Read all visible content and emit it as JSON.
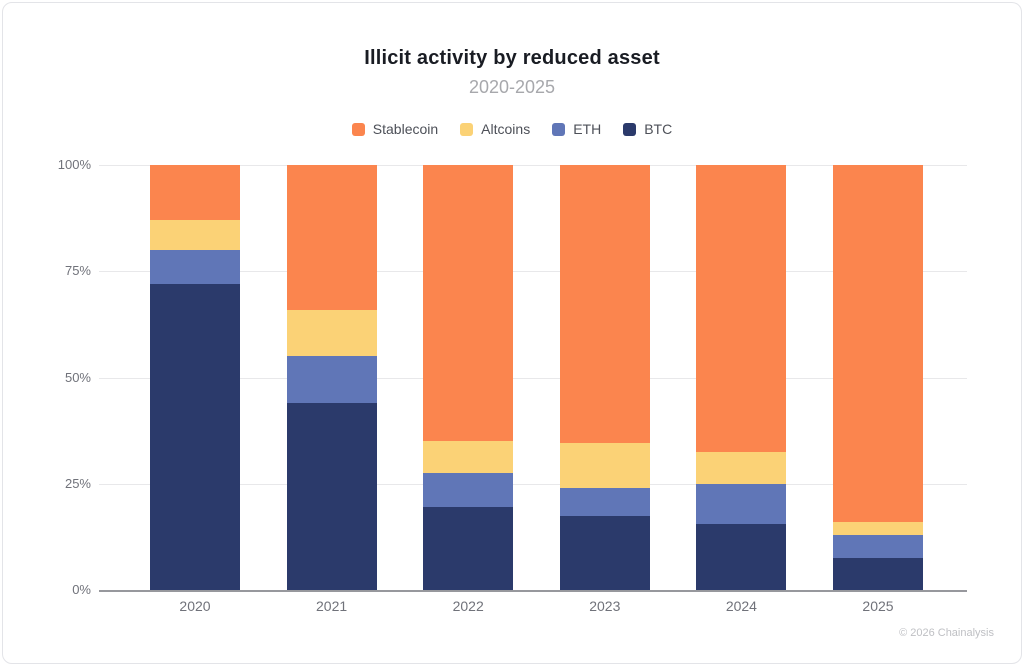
{
  "chart_data": {
    "type": "bar",
    "stacked": true,
    "title": "Illicit activity by reduced asset",
    "subtitle": "2020-2025",
    "categories": [
      "2020",
      "2021",
      "2022",
      "2023",
      "2024",
      "2025"
    ],
    "series": [
      {
        "name": "Stablecoin",
        "color": "#FB854E",
        "values": [
          13,
          34,
          65,
          65.5,
          67.5,
          84
        ]
      },
      {
        "name": "Altcoins",
        "color": "#FBD276",
        "values": [
          7,
          11,
          7.5,
          10.5,
          7.5,
          3
        ]
      },
      {
        "name": "ETH",
        "color": "#6076B7",
        "values": [
          8,
          11,
          8,
          6.5,
          9.5,
          5.5
        ]
      },
      {
        "name": "BTC",
        "color": "#2B3A6B",
        "values": [
          72,
          44,
          19.5,
          17.5,
          15.5,
          7.5
        ]
      }
    ],
    "xlabel": "",
    "ylabel": "",
    "ylim": [
      0,
      100
    ],
    "y_ticks": [
      {
        "label": "0%",
        "value": 0
      },
      {
        "label": "25%",
        "value": 25
      },
      {
        "label": "50%",
        "value": 50
      },
      {
        "label": "75%",
        "value": 75
      },
      {
        "label": "100%",
        "value": 100
      }
    ],
    "grid": true,
    "legend_position": "top",
    "footer": "© 2026 Chainalysis"
  },
  "colors": {
    "card_border": "#E3E4E8",
    "grid_line": "#E8E8EA",
    "axis_line": "#97989D",
    "title_text": "#191C23",
    "subtitle_text": "#A7A8AC",
    "legend_text": "#4D5058",
    "tick_text": "#70727A",
    "footer_text": "#BFC0C4"
  }
}
